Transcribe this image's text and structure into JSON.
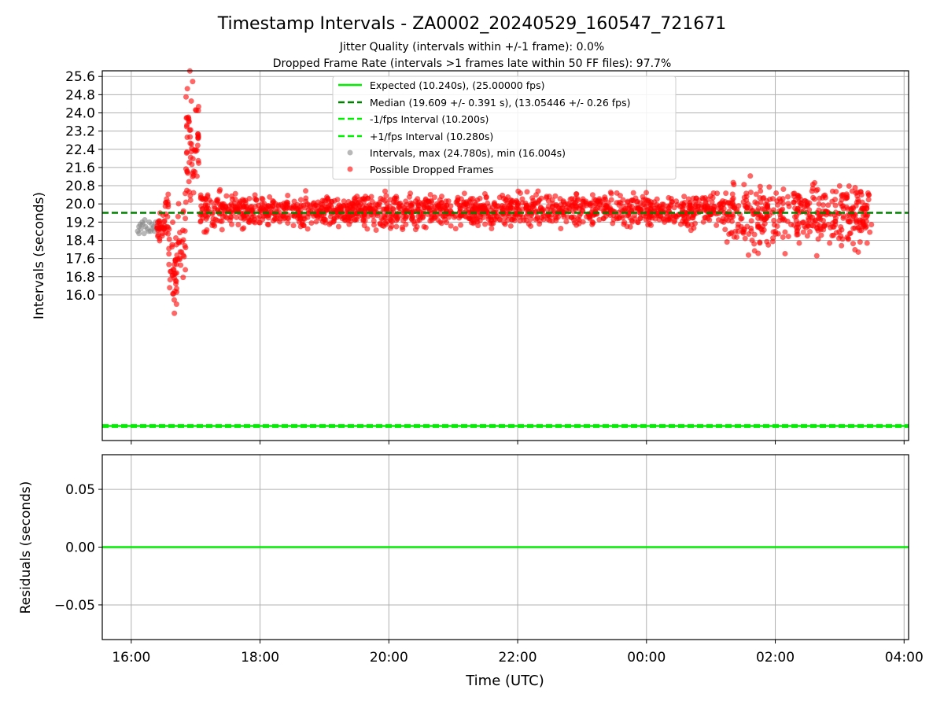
{
  "chart_data": {
    "type": "scatter",
    "title": "Timestamp Intervals - ZA0002_20240529_160547_721671",
    "subtitle_lines": [
      "Jitter Quality (intervals within +/-1 frame): 0.0%",
      "Dropped Frame Rate (intervals >1 frames late within 50 FF files): 97.7%"
    ],
    "xlabel": "Time (UTC)",
    "x_ticks": [
      "16:00",
      "18:00",
      "20:00",
      "22:00",
      "00:00",
      "02:00",
      "04:00"
    ],
    "x_tick_hours": [
      16,
      18,
      20,
      22,
      24,
      26,
      28
    ],
    "x_range_hours": [
      15.55,
      28.07
    ],
    "top": {
      "ylabel": "Intervals (seconds)",
      "y_ticks": [
        "25.6",
        "24.8",
        "24.0",
        "23.2",
        "22.4",
        "21.6",
        "20.8",
        "20.0",
        "19.2",
        "18.4",
        "17.6",
        "16.8",
        "16.0"
      ],
      "y_tick_values": [
        25.6,
        24.8,
        24.0,
        23.2,
        22.4,
        21.6,
        20.8,
        20.0,
        19.2,
        18.4,
        17.6,
        16.8,
        16.0
      ],
      "ylim": [
        9.6,
        25.85
      ],
      "grid": true,
      "legend_position": "upper center",
      "lines": {
        "expected": {
          "label": "Expected (10.240s), (25.00000 fps)",
          "value": 10.24,
          "color": "#00ee00",
          "style": "solid"
        },
        "median": {
          "label": "Median (19.609 +/- 0.391 s), (13.05446 +/- 0.26 fps)",
          "value": 19.609,
          "color": "#008000",
          "style": "dashed"
        },
        "minus_interval": {
          "label": "-1/fps Interval (10.200s)",
          "value": 10.2,
          "color": "#00ee00",
          "style": "dashed"
        },
        "plus_interval": {
          "label": "+1/fps Interval (10.280s)",
          "value": 10.28,
          "color": "#00ee00",
          "style": "dashed"
        }
      },
      "series": [
        {
          "name": "Intervals, max (24.780s), min (16.004s)",
          "color": "#888888",
          "points": [
            [
              16.1,
              18.8
            ],
            [
              16.12,
              19.0
            ],
            [
              16.15,
              18.9
            ],
            [
              16.18,
              19.1
            ],
            [
              16.2,
              18.7
            ],
            [
              16.22,
              19.0
            ],
            [
              16.25,
              18.9
            ],
            [
              16.28,
              19.2
            ],
            [
              16.3,
              18.8
            ],
            [
              16.32,
              19.1
            ],
            [
              16.35,
              19.0
            ],
            [
              16.38,
              19.2
            ],
            [
              16.4,
              18.9
            ],
            [
              16.12,
              18.7
            ],
            [
              16.17,
              19.2
            ],
            [
              16.27,
              18.8
            ],
            [
              16.33,
              18.9
            ],
            [
              16.21,
              19.3
            ],
            [
              16.36,
              18.8
            ],
            [
              16.14,
              19.1
            ]
          ]
        },
        {
          "name": "Possible Dropped Frames",
          "color": "#ff0000",
          "points": []
        }
      ],
      "segments": [
        {
          "from": 16.4,
          "to": 16.52,
          "center": 19.0,
          "spread": 0.5,
          "count": 30
        },
        {
          "from": 16.52,
          "to": 16.58,
          "center": 19.8,
          "spread": 0.9,
          "count": 14
        },
        {
          "from": 16.58,
          "to": 16.72,
          "center": 17.2,
          "spread": 1.4,
          "count": 40
        },
        {
          "from": 16.72,
          "to": 16.85,
          "center": 18.6,
          "spread": 1.8,
          "count": 26
        },
        {
          "from": 16.85,
          "to": 17.05,
          "center": 22.5,
          "spread": 2.2,
          "count": 60
        },
        {
          "from": 17.05,
          "to": 17.2,
          "center": 19.8,
          "spread": 0.9,
          "count": 34
        },
        {
          "from": 17.2,
          "to": 25.2,
          "center": 19.7,
          "spread": 0.55,
          "count": 1400
        },
        {
          "from": 25.2,
          "to": 27.5,
          "center": 19.5,
          "spread": 1.1,
          "count": 420
        }
      ]
    },
    "bottom": {
      "ylabel": "Residuals (seconds)",
      "y_ticks": [
        "0.05",
        "0.00",
        "−0.05"
      ],
      "y_tick_values": [
        0.05,
        0.0,
        -0.05
      ],
      "ylim": [
        -0.08,
        0.08
      ],
      "grid": true,
      "residual_value": 0.0,
      "residual_color": "#00ee00"
    }
  }
}
